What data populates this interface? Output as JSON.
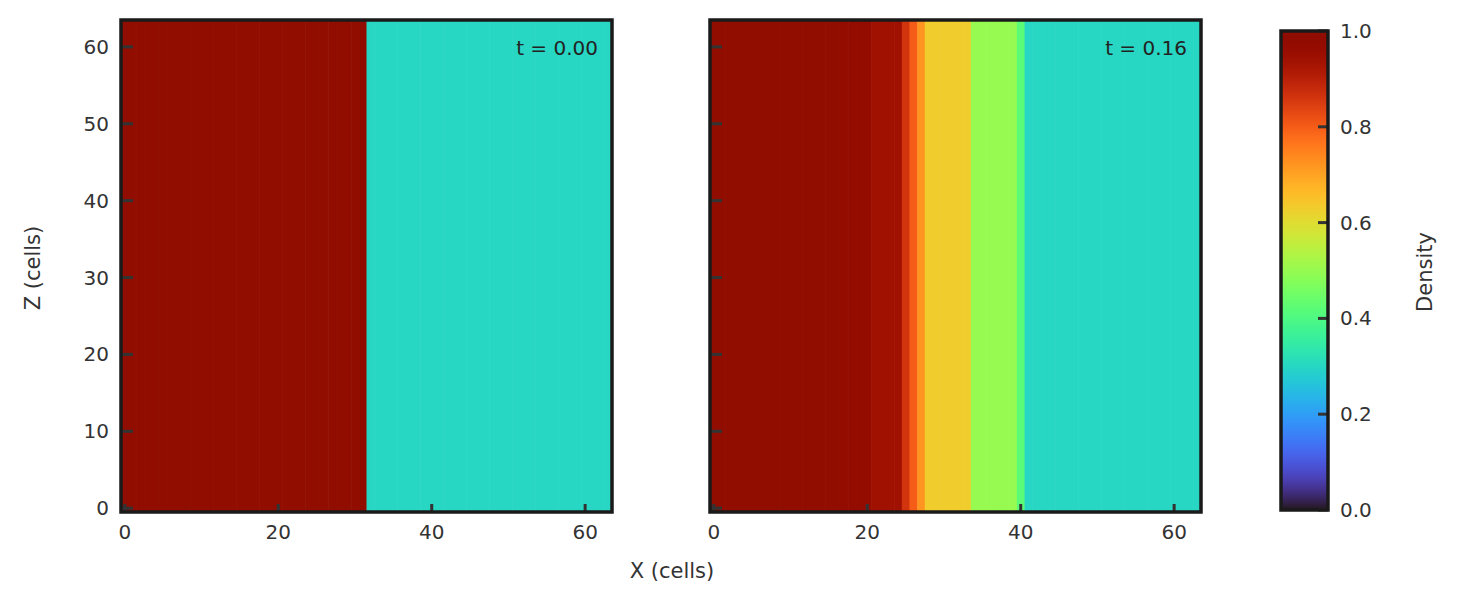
{
  "chart_data": {
    "type": "heatmap",
    "x_label": "X (cells)",
    "y_label": "Z (cells)",
    "xlim": [
      -0.5,
      63.5
    ],
    "ylim": [
      -0.5,
      63.5
    ],
    "xticks": [
      0,
      20,
      40,
      60
    ],
    "yticks": [
      0,
      10,
      20,
      30,
      40,
      50,
      60
    ],
    "colorbar": {
      "label": "Density",
      "range": [
        0,
        1
      ],
      "ticks": [
        {
          "value": 0,
          "label": "0.0"
        },
        {
          "value": 0.2,
          "label": "0.2"
        },
        {
          "value": 0.4,
          "label": "0.4"
        },
        {
          "value": 0.6,
          "label": "0.6"
        },
        {
          "value": 0.8,
          "label": "0.8"
        },
        {
          "value": 1,
          "label": "1.0"
        }
      ]
    },
    "panels": [
      {
        "title": "t = 0.00",
        "x": [
          0,
          1,
          2,
          3,
          4,
          5,
          6,
          7,
          8,
          9,
          10,
          11,
          12,
          13,
          14,
          15,
          16,
          17,
          18,
          19,
          20,
          21,
          22,
          23,
          24,
          25,
          26,
          27,
          28,
          29,
          30,
          31,
          32,
          33,
          34,
          35,
          36,
          37,
          38,
          39,
          40,
          41,
          42,
          43,
          44,
          45,
          46,
          47,
          48,
          49,
          50,
          51,
          52,
          53,
          54,
          55,
          56,
          57,
          58,
          59,
          60,
          61,
          62,
          63
        ],
        "values": [
          1.0,
          1.0,
          1.0,
          1.0,
          1.0,
          1.0,
          1.0,
          1.0,
          1.0,
          1.0,
          1.0,
          1.0,
          1.0,
          1.0,
          1.0,
          1.0,
          1.0,
          1.0,
          1.0,
          1.0,
          1.0,
          1.0,
          1.0,
          1.0,
          1.0,
          1.0,
          1.0,
          1.0,
          1.0,
          1.0,
          1.0,
          1.0,
          0.3,
          0.3,
          0.3,
          0.3,
          0.3,
          0.3,
          0.3,
          0.3,
          0.3,
          0.3,
          0.3,
          0.3,
          0.3,
          0.3,
          0.3,
          0.3,
          0.3,
          0.3,
          0.3,
          0.3,
          0.3,
          0.3,
          0.3,
          0.3,
          0.3,
          0.3,
          0.3,
          0.3,
          0.3,
          0.3,
          0.3,
          0.3
        ]
      },
      {
        "title": "t = 0.16",
        "tick_labels": "x",
        "x": [
          0,
          1,
          2,
          3,
          4,
          5,
          6,
          7,
          8,
          9,
          10,
          11,
          12,
          13,
          14,
          15,
          16,
          17,
          18,
          19,
          20,
          21,
          22,
          23,
          24,
          25,
          26,
          27,
          28,
          29,
          30,
          31,
          32,
          33,
          34,
          35,
          36,
          37,
          38,
          39,
          40,
          41,
          42,
          43,
          44,
          45,
          46,
          47,
          48,
          49,
          50,
          51,
          52,
          53,
          54,
          55,
          56,
          57,
          58,
          59,
          60,
          61,
          62,
          63
        ],
        "values": [
          1.0,
          1.0,
          1.0,
          1.0,
          1.0,
          1.0,
          1.0,
          1.0,
          1.0,
          1.0,
          1.0,
          1.0,
          1.0,
          1.0,
          1.0,
          1.0,
          1.0,
          0.97,
          0.97,
          0.97,
          0.97,
          0.94,
          0.94,
          0.94,
          0.94,
          0.86,
          0.8,
          0.72,
          0.63,
          0.63,
          0.63,
          0.63,
          0.63,
          0.63,
          0.5,
          0.5,
          0.5,
          0.5,
          0.5,
          0.5,
          0.42,
          0.3,
          0.3,
          0.3,
          0.3,
          0.3,
          0.3,
          0.3,
          0.3,
          0.3,
          0.3,
          0.3,
          0.3,
          0.3,
          0.3,
          0.3,
          0.3,
          0.3,
          0.3,
          0.3,
          0.3,
          0.3,
          0.3,
          0.3
        ]
      }
    ]
  }
}
